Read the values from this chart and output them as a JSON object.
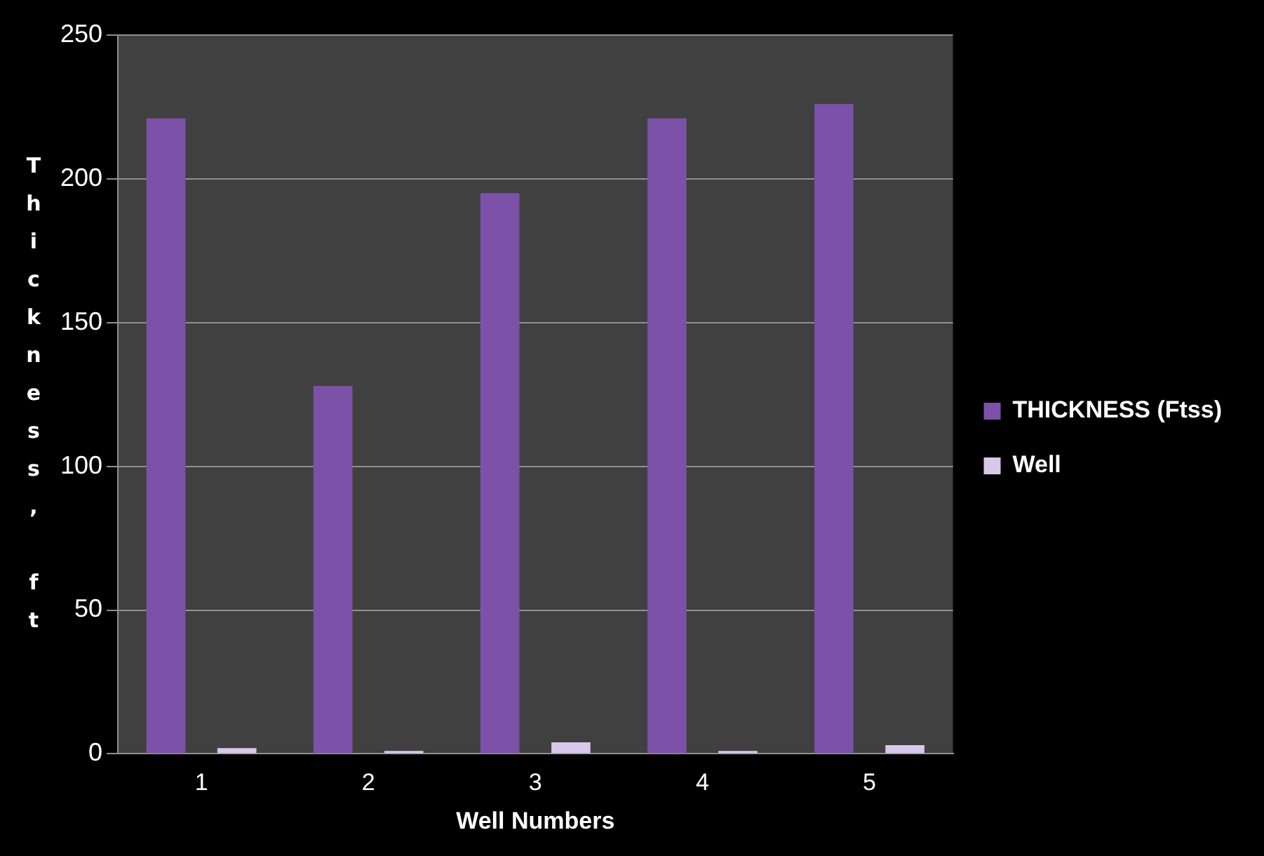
{
  "chart_data": {
    "type": "bar",
    "xlabel": "Well Numbers",
    "ylabel": "Thickness, ft",
    "categories": [
      "1",
      "2",
      "3",
      "4",
      "5"
    ],
    "series": [
      {
        "name": "THICKNESS (Ftss)",
        "color": "#7b52a8",
        "values": [
          221,
          128,
          195,
          221,
          226
        ]
      },
      {
        "name": "Well",
        "color": "#d8c8ec",
        "values": [
          2,
          1,
          4,
          1,
          3
        ]
      }
    ],
    "ylim": [
      0,
      250
    ],
    "yticks": [
      0,
      50,
      100,
      150,
      200,
      250
    ],
    "grid": "y",
    "legend": "right"
  }
}
